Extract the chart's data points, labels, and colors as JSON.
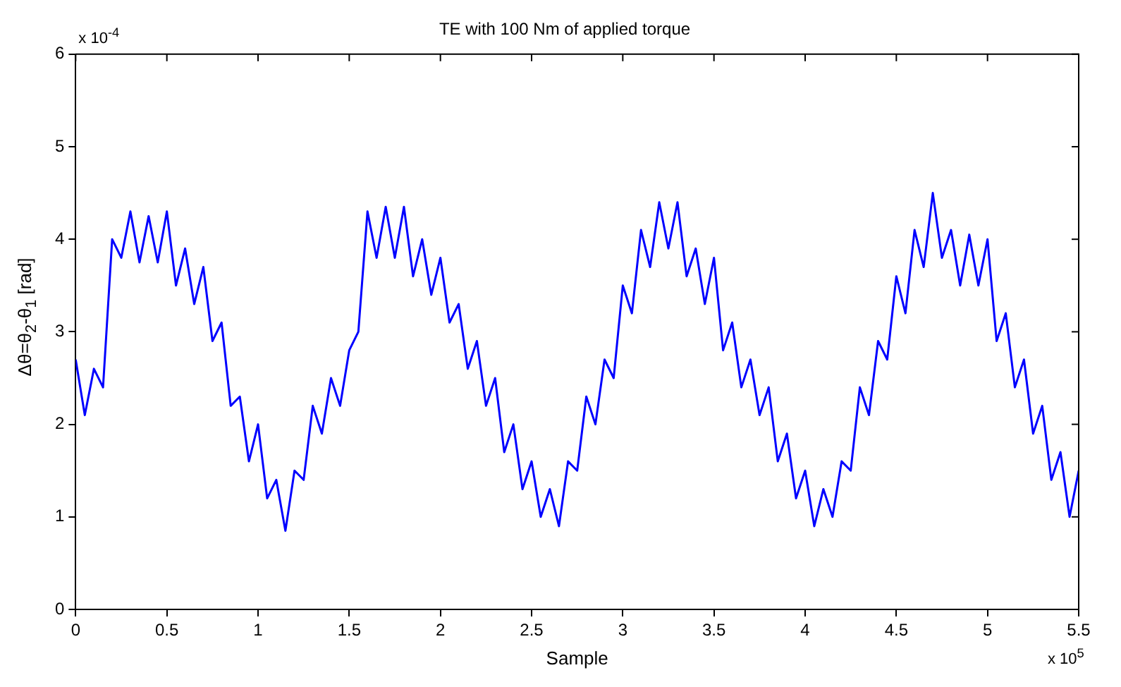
{
  "chart_data": {
    "type": "line",
    "title": "TE with 100 Nm of applied torque",
    "xlabel": "Sample",
    "ylabel": "Δθ=θ$_{2}$-θ$_{1}$ [rad]",
    "annotations": [
      "x 10$^{-4}$",
      "x 10$^{5}$"
    ],
    "xlim": [
      0,
      5.5
    ],
    "xticks": [
      0,
      0.5,
      1,
      1.5,
      2,
      2.5,
      3,
      3.5,
      4,
      4.5,
      5,
      5.5
    ],
    "ylim": [
      0,
      6
    ],
    "yticks": [
      0,
      1,
      2,
      3,
      4,
      5,
      6
    ],
    "grid": false,
    "legend": false,
    "marker": "none",
    "line_style": "solid",
    "x": [
      0,
      0.05,
      0.1,
      0.15,
      0.2,
      0.25,
      0.3,
      0.35,
      0.4,
      0.45,
      0.5,
      0.55,
      0.6,
      0.65,
      0.7,
      0.75,
      0.8,
      0.85,
      0.9,
      0.95,
      1,
      1.05,
      1.1,
      1.15,
      1.2,
      1.25,
      1.3,
      1.35,
      1.4,
      1.45,
      1.5,
      1.55,
      1.6,
      1.65,
      1.7,
      1.75,
      1.8,
      1.85,
      1.9,
      1.95,
      2,
      2.05,
      2.1,
      2.15,
      2.2,
      2.25,
      2.3,
      2.35,
      2.4,
      2.45,
      2.5,
      2.55,
      2.6,
      2.65,
      2.7,
      2.75,
      2.8,
      2.85,
      2.9,
      2.95,
      3,
      3.05,
      3.1,
      3.15,
      3.2,
      3.25,
      3.3,
      3.35,
      3.4,
      3.45,
      3.5,
      3.55,
      3.6,
      3.65,
      3.7,
      3.75,
      3.8,
      3.85,
      3.9,
      3.95,
      4,
      4.05,
      4.1,
      4.15,
      4.2,
      4.25,
      4.3,
      4.35,
      4.4,
      4.45,
      4.5,
      4.55,
      4.6,
      4.65,
      4.7,
      4.75,
      4.8,
      4.85,
      4.9,
      4.95,
      5,
      5.05,
      5.1,
      5.15,
      5.2,
      5.25,
      5.3,
      5.35,
      5.4,
      5.45,
      5.5
    ],
    "series": [
      {
        "color": "#0000ff",
        "values": [
          2.7,
          2.1,
          2.6,
          2.4,
          4.0,
          3.8,
          4.3,
          3.75,
          4.25,
          3.75,
          4.3,
          3.5,
          3.9,
          3.3,
          3.7,
          2.9,
          3.1,
          2.2,
          2.3,
          1.6,
          2.0,
          1.2,
          1.4,
          0.85,
          1.5,
          1.4,
          2.2,
          1.9,
          2.5,
          2.2,
          2.8,
          3.0,
          4.3,
          3.8,
          4.35,
          3.8,
          4.35,
          3.6,
          4.0,
          3.4,
          3.8,
          3.1,
          3.3,
          2.6,
          2.9,
          2.2,
          2.5,
          1.7,
          2.0,
          1.3,
          1.6,
          1.0,
          1.3,
          0.9,
          1.6,
          1.5,
          2.3,
          2.0,
          2.7,
          2.5,
          3.5,
          3.2,
          4.1,
          3.7,
          4.4,
          3.9,
          4.4,
          3.6,
          3.9,
          3.3,
          3.8,
          2.8,
          3.1,
          2.4,
          2.7,
          2.1,
          2.4,
          1.6,
          1.9,
          1.2,
          1.5,
          0.9,
          1.3,
          1.0,
          1.6,
          1.5,
          2.4,
          2.1,
          2.9,
          2.7,
          3.6,
          3.2,
          4.1,
          3.7,
          4.5,
          3.8,
          4.1,
          3.5,
          4.05,
          3.5,
          4.0,
          2.9,
          3.2,
          2.4,
          2.7,
          1.9,
          2.2,
          1.4,
          1.7,
          1.0,
          1.5
        ]
      }
    ]
  }
}
